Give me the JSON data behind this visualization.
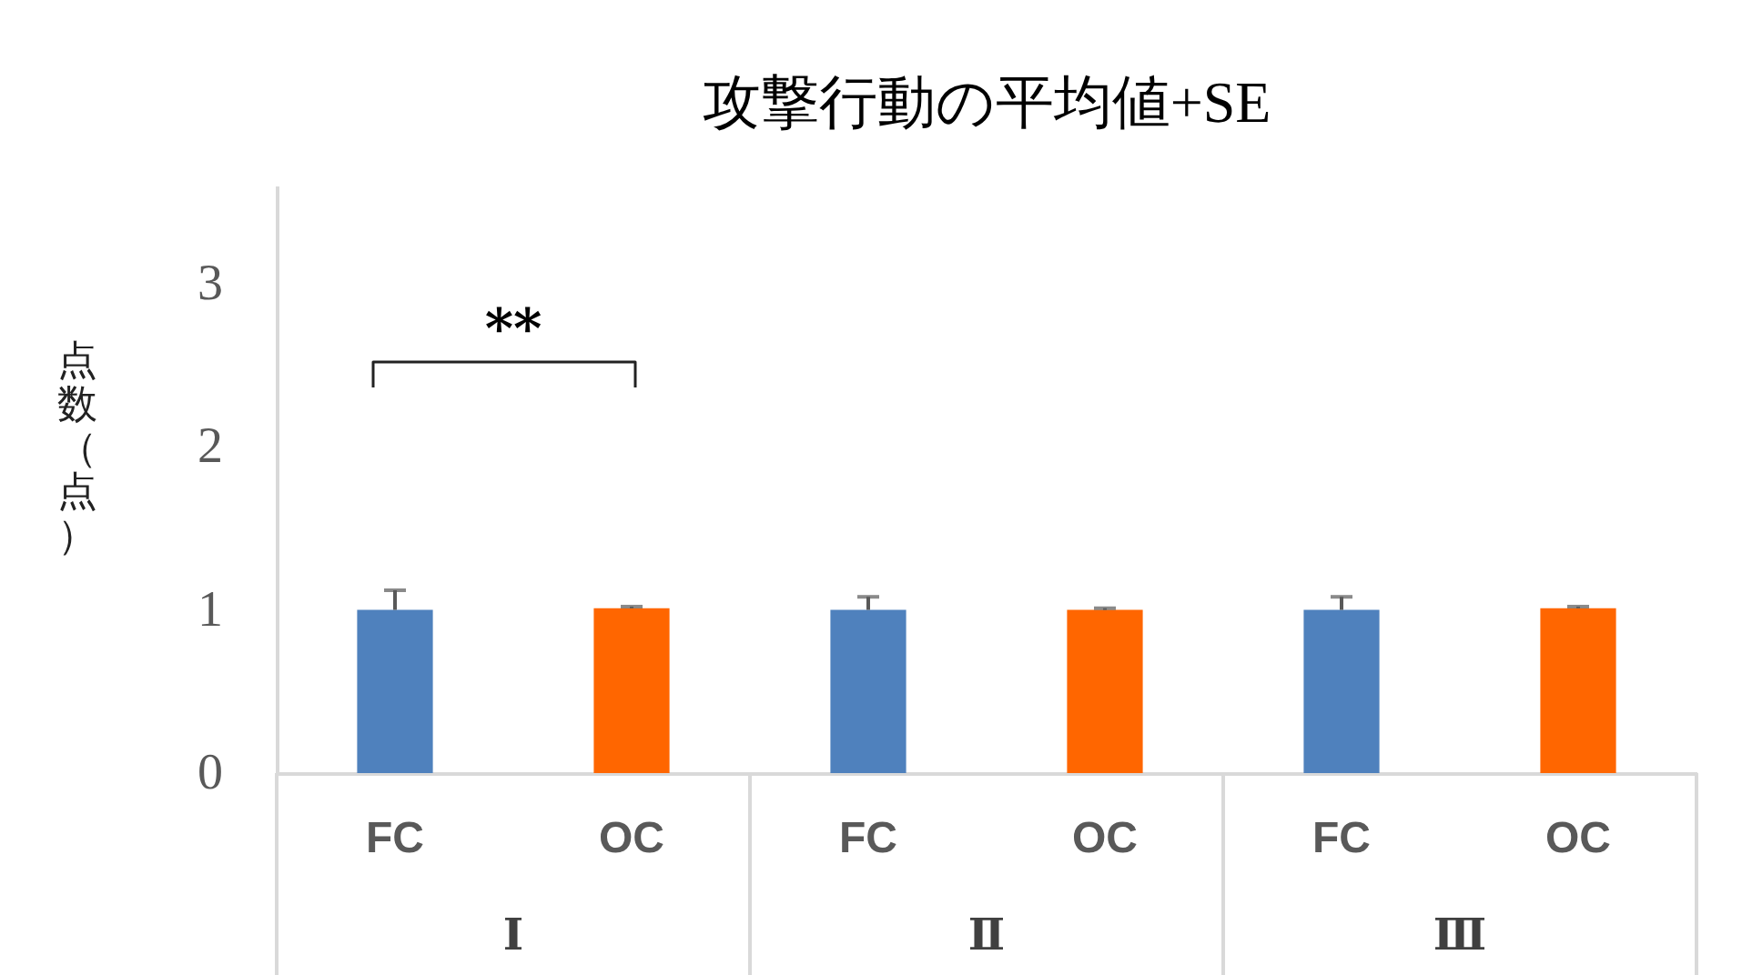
{
  "chart_data": {
    "type": "bar",
    "title": "攻撃行動の平均値+SE",
    "ylabel": "点数（点）",
    "categories": [
      "FC",
      "OC",
      "FC",
      "OC",
      "FC",
      "OC"
    ],
    "values": [
      1.0,
      1.01,
      1.0,
      1.0,
      1.0,
      1.01
    ],
    "colors": [
      "#4f81bd",
      "#ff6600",
      "#4f81bd",
      "#ff6600",
      "#4f81bd",
      "#ff6600"
    ],
    "errors": [
      [
        1.0,
        1.12
      ],
      [
        1.01,
        1.02
      ],
      [
        1.0,
        1.08
      ],
      [
        1.0,
        1.01
      ],
      [
        1.0,
        1.08
      ],
      [
        1.01,
        1.02
      ]
    ],
    "ylim": [
      0,
      3.6
    ],
    "yticks": [
      0,
      1,
      2,
      3
    ],
    "grid": false,
    "annotations": [
      "**",
      "Ⅰ",
      "Ⅱ",
      "Ⅲ"
    ]
  }
}
